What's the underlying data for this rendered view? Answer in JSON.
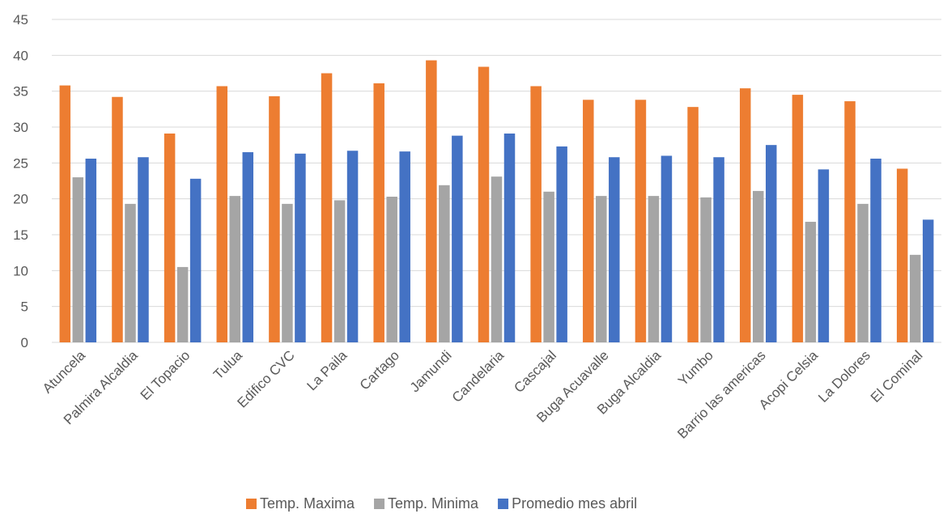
{
  "chart_data": {
    "type": "bar",
    "title": "",
    "xlabel": "",
    "ylabel": "",
    "ylim": [
      0,
      45
    ],
    "ytick_step": 5,
    "yticks": [
      "0",
      "5",
      "10",
      "15",
      "20",
      "25",
      "30",
      "35",
      "40",
      "45"
    ],
    "grid": true,
    "legend_position": "bottom",
    "categories": [
      "Atuncela",
      "Palmira Alcaldia",
      "El Topacio",
      "Tulua",
      "Edifico CVC",
      "La Paila",
      "Cartago",
      "Jamundi",
      "Candelaria",
      "Cascajal",
      "Buga Acuavalle",
      "Buga Alcaldia",
      "Yumbo",
      "Barrio las americas",
      "Acopi Celsia",
      "La Dolores",
      "El Cominal"
    ],
    "series": [
      {
        "name": "Temp. Maxima",
        "color": "#ED7D31",
        "values": [
          35.8,
          34.2,
          29.1,
          35.7,
          34.3,
          37.5,
          36.1,
          39.3,
          38.4,
          35.7,
          33.8,
          33.8,
          32.8,
          35.4,
          34.5,
          33.6,
          24.2
        ]
      },
      {
        "name": "Temp. Minima",
        "color": "#A5A5A5",
        "values": [
          23.0,
          19.3,
          10.5,
          20.4,
          19.3,
          19.8,
          20.3,
          21.9,
          23.1,
          21.0,
          20.4,
          20.4,
          20.2,
          21.1,
          16.8,
          19.3,
          12.2
        ]
      },
      {
        "name": "Promedio mes abril",
        "color": "#4472C4",
        "values": [
          25.6,
          25.8,
          22.8,
          26.5,
          26.3,
          26.7,
          26.6,
          28.8,
          29.1,
          27.3,
          25.8,
          26.0,
          25.8,
          27.5,
          24.1,
          25.6,
          17.1
        ]
      }
    ]
  }
}
